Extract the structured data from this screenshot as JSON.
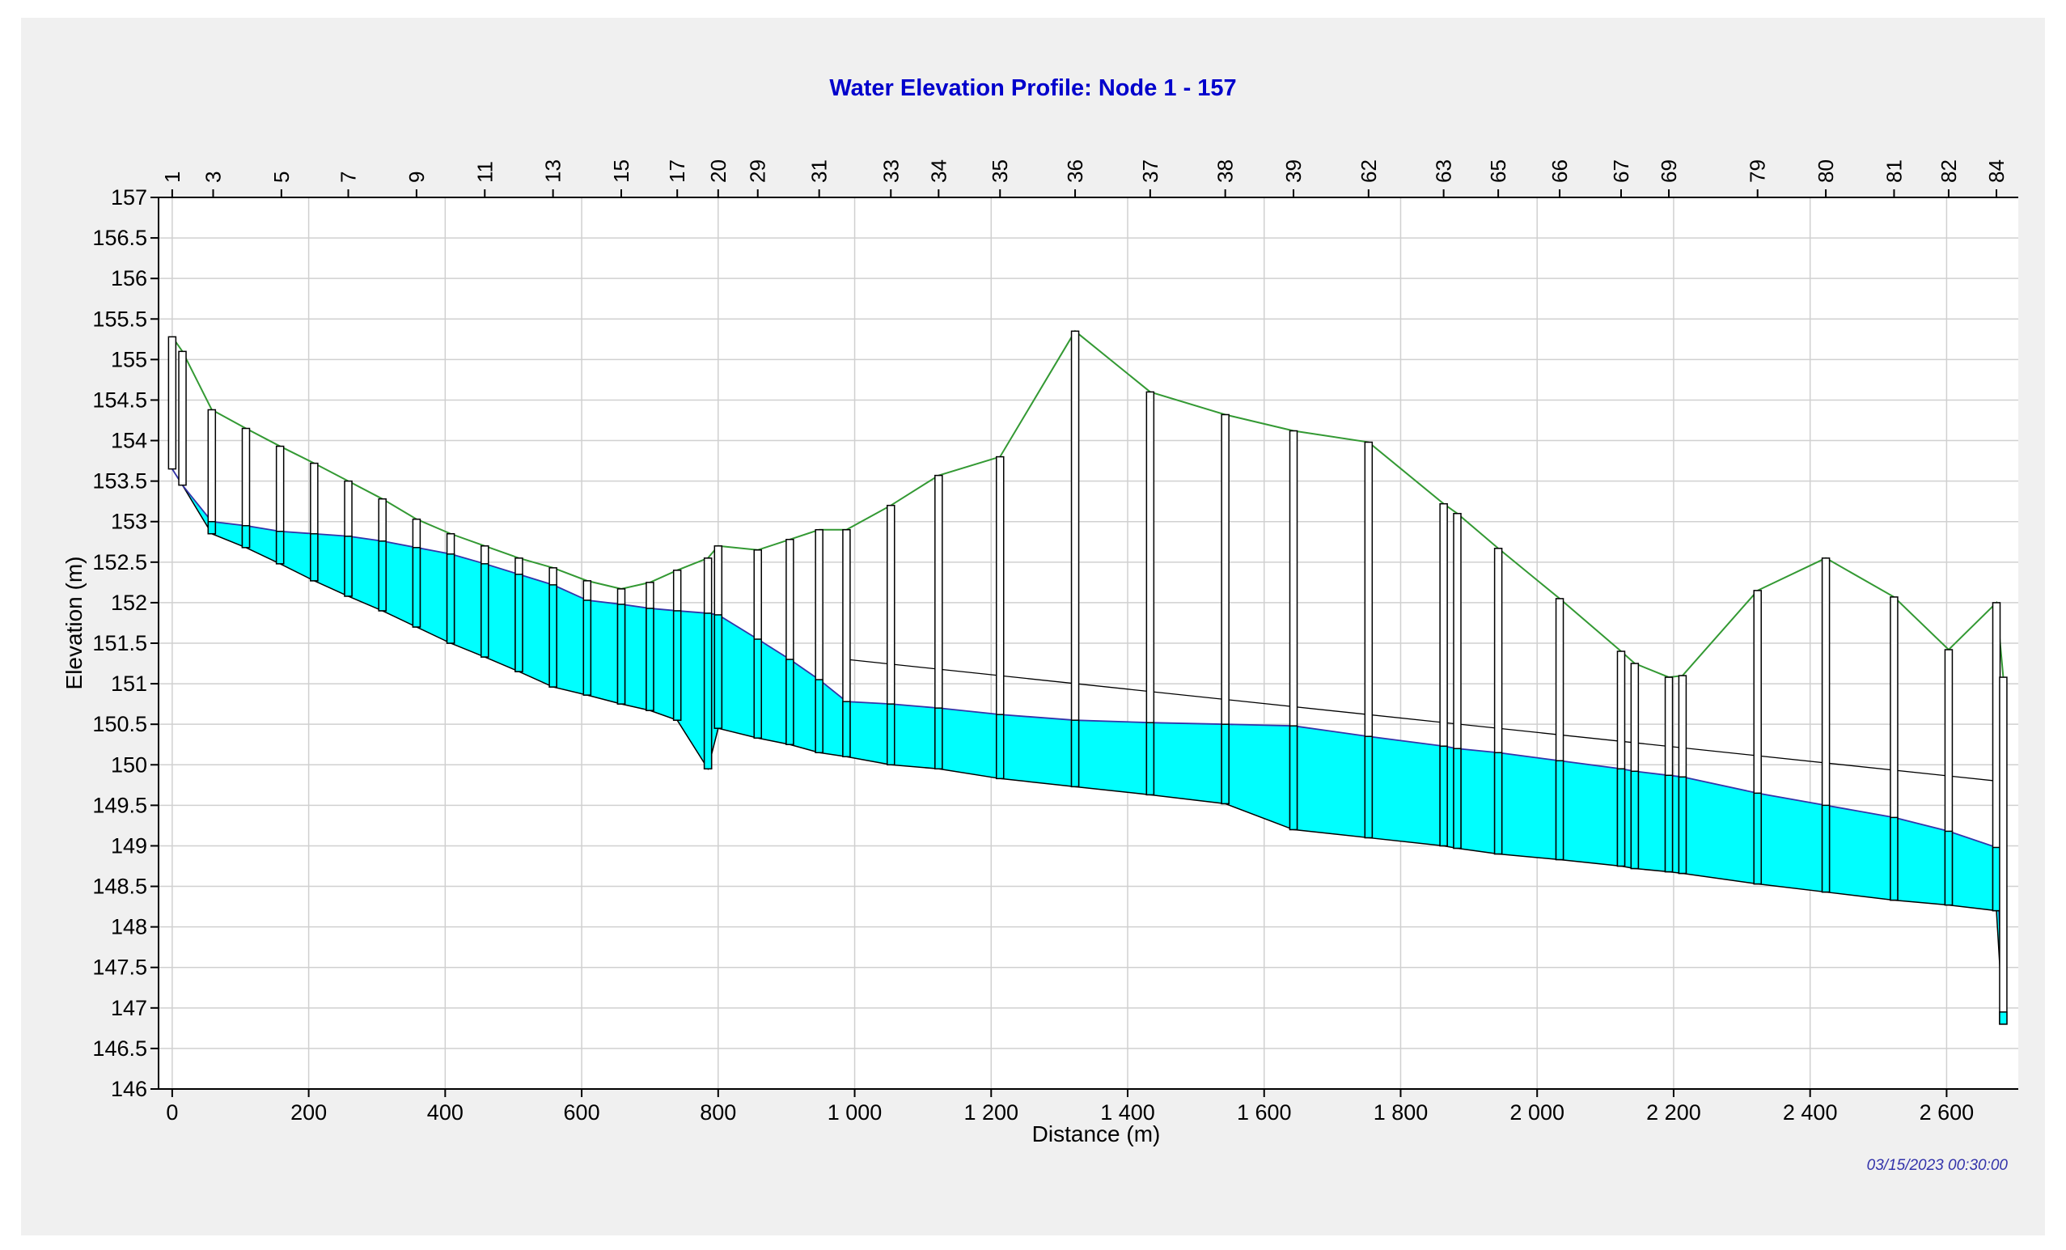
{
  "chart_data": {
    "type": "area",
    "title": "Water Elevation Profile: Node 1 - 157",
    "xlabel": "Distance (m)",
    "ylabel": "Elevation (m)",
    "xlim": [
      -20,
      2705
    ],
    "ylim": [
      146,
      157
    ],
    "x_ticks": [
      0,
      200,
      400,
      600,
      800,
      1000,
      1200,
      1400,
      1600,
      1800,
      2000,
      2200,
      2400,
      2600
    ],
    "x_tick_labels": [
      "0",
      "200",
      "400",
      "600",
      "800",
      "1 000",
      "1 200",
      "1 400",
      "1 600",
      "1 800",
      "2 000",
      "2 200",
      "2 400",
      "2 600"
    ],
    "y_ticks": [
      146,
      146.5,
      147,
      147.5,
      148,
      148.5,
      149,
      149.5,
      150,
      150.5,
      151,
      151.5,
      152,
      152.5,
      153,
      153.5,
      154,
      154.5,
      155,
      155.5,
      156,
      156.5,
      157
    ],
    "y_tick_labels": [
      "146",
      "146.5",
      "147",
      "147.5",
      "148",
      "148.5",
      "149",
      "149.5",
      "150",
      "150.5",
      "151",
      "151.5",
      "152",
      "152.5",
      "153",
      "153.5",
      "154",
      "154.5",
      "155",
      "155.5",
      "156",
      "156.5",
      "157"
    ],
    "grid": true,
    "timestamp": "03/15/2023 00:30:00",
    "node_labels": [
      {
        "label": "1",
        "x": 0
      },
      {
        "label": "3",
        "x": 60
      },
      {
        "label": "5",
        "x": 160
      },
      {
        "label": "7",
        "x": 258
      },
      {
        "label": "9",
        "x": 358
      },
      {
        "label": "11",
        "x": 458
      },
      {
        "label": "13",
        "x": 558
      },
      {
        "label": "15",
        "x": 658
      },
      {
        "label": "17",
        "x": 740
      },
      {
        "label": "20",
        "x": 800
      },
      {
        "label": "29",
        "x": 858
      },
      {
        "label": "31",
        "x": 948
      },
      {
        "label": "33",
        "x": 1053
      },
      {
        "label": "34",
        "x": 1123
      },
      {
        "label": "35",
        "x": 1213
      },
      {
        "label": "36",
        "x": 1323
      },
      {
        "label": "37",
        "x": 1433
      },
      {
        "label": "38",
        "x": 1543
      },
      {
        "label": "39",
        "x": 1643
      },
      {
        "label": "62",
        "x": 1753
      },
      {
        "label": "63",
        "x": 1863
      },
      {
        "label": "65",
        "x": 1943
      },
      {
        "label": "66",
        "x": 2033
      },
      {
        "label": "67",
        "x": 2123
      },
      {
        "label": "69",
        "x": 2193
      },
      {
        "label": "79",
        "x": 2323
      },
      {
        "label": "80",
        "x": 2423
      },
      {
        "label": "81",
        "x": 2523
      },
      {
        "label": "82",
        "x": 2603
      },
      {
        "label": "84",
        "x": 2673
      }
    ],
    "nodes": [
      {
        "x": 0,
        "ground": 155.28,
        "invert": 153.65,
        "water": 153.65
      },
      {
        "x": 15,
        "ground": 155.1,
        "invert": 153.45,
        "water": 153.45
      },
      {
        "x": 58,
        "ground": 154.38,
        "invert": 152.85,
        "water": 153.0
      },
      {
        "x": 108,
        "ground": 154.15,
        "invert": 152.68,
        "water": 152.95
      },
      {
        "x": 158,
        "ground": 153.93,
        "invert": 152.48,
        "water": 152.88
      },
      {
        "x": 208,
        "ground": 153.72,
        "invert": 152.27,
        "water": 152.85
      },
      {
        "x": 258,
        "ground": 153.5,
        "invert": 152.08,
        "water": 152.82
      },
      {
        "x": 308,
        "ground": 153.28,
        "invert": 151.9,
        "water": 152.76
      },
      {
        "x": 358,
        "ground": 153.03,
        "invert": 151.7,
        "water": 152.68
      },
      {
        "x": 408,
        "ground": 152.85,
        "invert": 151.5,
        "water": 152.6
      },
      {
        "x": 458,
        "ground": 152.7,
        "invert": 151.33,
        "water": 152.48
      },
      {
        "x": 508,
        "ground": 152.55,
        "invert": 151.15,
        "water": 152.35
      },
      {
        "x": 558,
        "ground": 152.43,
        "invert": 150.96,
        "water": 152.22
      },
      {
        "x": 608,
        "ground": 152.27,
        "invert": 150.86,
        "water": 152.03
      },
      {
        "x": 658,
        "ground": 152.17,
        "invert": 150.75,
        "water": 151.98
      },
      {
        "x": 700,
        "ground": 152.25,
        "invert": 150.67,
        "water": 151.93
      },
      {
        "x": 740,
        "ground": 152.4,
        "invert": 150.55,
        "water": 151.9
      },
      {
        "x": 785,
        "ground": 152.55,
        "invert": 149.95,
        "water": 151.87
      },
      {
        "x": 800,
        "ground": 152.7,
        "invert": 150.45,
        "water": 151.85
      },
      {
        "x": 858,
        "ground": 152.65,
        "invert": 150.33,
        "water": 151.55
      },
      {
        "x": 905,
        "ground": 152.78,
        "invert": 150.25,
        "water": 151.3
      },
      {
        "x": 948,
        "ground": 152.9,
        "invert": 150.15,
        "water": 151.05
      },
      {
        "x": 988,
        "ground": 152.9,
        "invert": 150.1,
        "water": 150.78
      },
      {
        "x": 1053,
        "ground": 153.2,
        "invert": 150.0,
        "water": 150.75
      },
      {
        "x": 1123,
        "ground": 153.57,
        "invert": 149.95,
        "water": 150.7
      },
      {
        "x": 1213,
        "ground": 153.8,
        "invert": 149.83,
        "water": 150.62
      },
      {
        "x": 1323,
        "ground": 155.35,
        "invert": 149.73,
        "water": 150.55
      },
      {
        "x": 1433,
        "ground": 154.6,
        "invert": 149.63,
        "water": 150.52
      },
      {
        "x": 1543,
        "ground": 154.32,
        "invert": 149.52,
        "water": 150.5
      },
      {
        "x": 1643,
        "ground": 154.12,
        "invert": 149.2,
        "water": 150.48
      },
      {
        "x": 1753,
        "ground": 153.98,
        "invert": 149.1,
        "water": 150.35
      },
      {
        "x": 1863,
        "ground": 153.22,
        "invert": 149.0,
        "water": 150.23
      },
      {
        "x": 1883,
        "ground": 153.1,
        "invert": 148.97,
        "water": 150.2
      },
      {
        "x": 1943,
        "ground": 152.67,
        "invert": 148.9,
        "water": 150.15
      },
      {
        "x": 2033,
        "ground": 152.05,
        "invert": 148.83,
        "water": 150.05
      },
      {
        "x": 2123,
        "ground": 151.4,
        "invert": 148.75,
        "water": 149.95
      },
      {
        "x": 2143,
        "ground": 151.25,
        "invert": 148.72,
        "water": 149.92
      },
      {
        "x": 2193,
        "ground": 151.08,
        "invert": 148.68,
        "water": 149.87
      },
      {
        "x": 2213,
        "ground": 151.1,
        "invert": 148.66,
        "water": 149.85
      },
      {
        "x": 2323,
        "ground": 152.15,
        "invert": 148.53,
        "water": 149.65
      },
      {
        "x": 2423,
        "ground": 152.55,
        "invert": 148.43,
        "water": 149.5
      },
      {
        "x": 2523,
        "ground": 152.07,
        "invert": 148.33,
        "water": 149.35
      },
      {
        "x": 2603,
        "ground": 151.42,
        "invert": 148.27,
        "water": 149.18
      },
      {
        "x": 2673,
        "ground": 152.0,
        "invert": 148.2,
        "water": 148.98
      },
      {
        "x": 2683,
        "ground": 151.08,
        "invert": 146.8,
        "water": 146.95
      }
    ],
    "reference_line": [
      [
        988,
        151.3
      ],
      [
        2673,
        149.8
      ]
    ],
    "series_colors": {
      "ground": "#339933",
      "water": "#3333aa",
      "water_fill": "#00ffff",
      "conduit_outline": "#000000",
      "reference": "#000000"
    }
  }
}
